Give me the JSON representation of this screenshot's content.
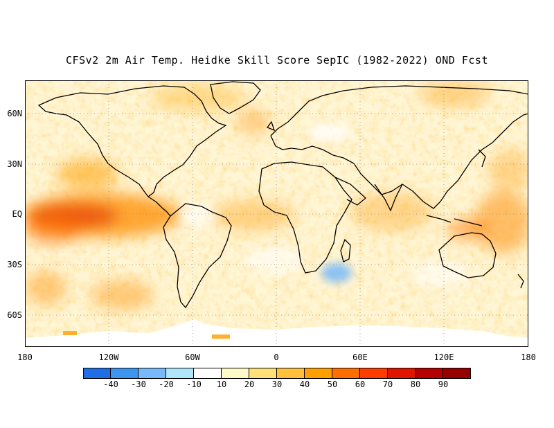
{
  "title": "CFSv2 2m Air Temp. Heidke Skill Score SepIC (1982-2022) OND Fcst",
  "lat_labels": [
    "60N",
    "30N",
    "EQ",
    "30S",
    "60S"
  ],
  "lon_labels": [
    "180",
    "120W",
    "60W",
    "0",
    "60E",
    "120E",
    "180"
  ],
  "colorbar": {
    "colors": [
      "#1e6ee6",
      "#3c96f0",
      "#78b9fa",
      "#afe6fa",
      "#ffffff",
      "#fffac8",
      "#ffe178",
      "#ffc03c",
      "#ffa000",
      "#ff6e00",
      "#ff3c00",
      "#e11400",
      "#b40000",
      "#960000"
    ],
    "labels": [
      "-40",
      "-30",
      "-20",
      "-10",
      "10",
      "20",
      "30",
      "40",
      "50",
      "60",
      "70",
      "80",
      "90"
    ]
  }
}
